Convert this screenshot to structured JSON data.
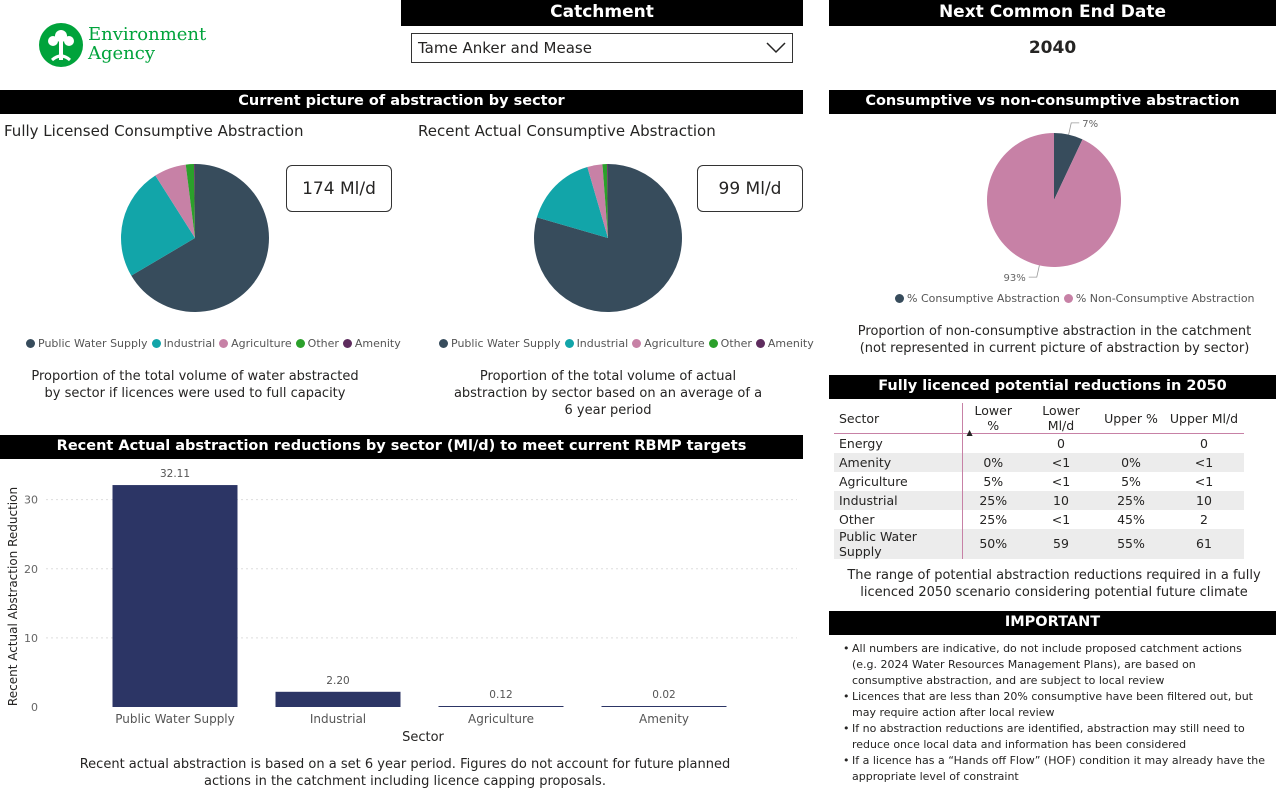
{
  "logo": {
    "line1": "Environment",
    "line2": "Agency"
  },
  "catchment": {
    "header": "Catchment",
    "selected": "Tame Anker and Mease"
  },
  "end_date": {
    "header": "Next Common End Date",
    "value": "2040"
  },
  "sector_section": {
    "header": "Current picture of abstraction by sector"
  },
  "licensed": {
    "title": "Fully Licensed Consumptive Abstraction",
    "card_value": "174 Ml/d",
    "caption": "Proportion of the total volume of water abstracted by sector if licences were used to full capacity"
  },
  "actual": {
    "title": "Recent Actual Consumptive Abstraction",
    "card_value": "99 Ml/d",
    "caption": "Proportion of the total volume of actual abstraction by sector based on an average of a 6 year period"
  },
  "sector_legend": [
    {
      "label": "Public Water Supply",
      "color": "#374C5C"
    },
    {
      "label": "Industrial",
      "color": "#12A5A9"
    },
    {
      "label": "Agriculture",
      "color": "#C781A6"
    },
    {
      "label": "Other",
      "color": "#2BA02B"
    },
    {
      "label": "Amenity",
      "color": "#5E2C5E"
    }
  ],
  "consumptive_section": {
    "header": "Consumptive vs non-consumptive abstraction",
    "legend": [
      {
        "label": "% Consumptive Abstraction",
        "color": "#374C5C"
      },
      {
        "label": "% Non-Consumptive Abstraction",
        "color": "#C781A6"
      }
    ],
    "caption": "Proportion of non-consumptive abstraction in the catchment (not represented in current picture of abstraction by sector)"
  },
  "reductions_section": {
    "header": "Fully licenced potential reductions in 2050",
    "columns": [
      "Sector",
      "Lower %",
      "Lower Ml/d",
      "Upper %",
      "Upper Ml/d"
    ],
    "rows": [
      [
        "Energy",
        "",
        "0",
        "",
        "0"
      ],
      [
        "Amenity",
        "0%",
        "<1",
        "0%",
        "<1"
      ],
      [
        "Agriculture",
        "5%",
        "<1",
        "5%",
        "<1"
      ],
      [
        "Industrial",
        "25%",
        "10",
        "25%",
        "10"
      ],
      [
        "Other",
        "25%",
        "<1",
        "45%",
        "2"
      ],
      [
        "Public Water Supply",
        "50%",
        "59",
        "55%",
        "61"
      ]
    ],
    "caption": "The range of potential abstraction reductions required in a fully licenced 2050 scenario considering potential future climate"
  },
  "important": {
    "header": "IMPORTANT",
    "items": [
      "All numbers are indicative, do not include proposed catchment actions (e.g. 2024 Water Resources Management Plans), are based on consumptive abstraction, and are subject to local review",
      "Licences that are less than 20% consumptive have been filtered out, but may require action after local review",
      "If no abstraction reductions are identified, abstraction may still need to reduce once local data and information has been considered",
      "If a licence has a “Hands off Flow” (HOF) condition it may already have the appropriate level of constraint"
    ]
  },
  "bar_section": {
    "header": "Recent Actual abstraction reductions by sector (Ml/d) to meet current RBMP targets",
    "caption": "Recent actual abstraction is based on a set 6 year period. Figures do not account for future planned actions in the catchment including licence capping proposals."
  },
  "chart_data": [
    {
      "type": "pie",
      "title": "Fully Licensed Consumptive Abstraction",
      "categories": [
        "Public Water Supply",
        "Industrial",
        "Agriculture",
        "Other",
        "Amenity"
      ],
      "values": [
        66.5,
        24.5,
        7.0,
        1.8,
        0.2
      ],
      "colors": [
        "#374C5C",
        "#12A5A9",
        "#C781A6",
        "#2BA02B",
        "#5E2C5E"
      ]
    },
    {
      "type": "pie",
      "title": "Recent Actual Consumptive Abstraction",
      "categories": [
        "Public Water Supply",
        "Industrial",
        "Agriculture",
        "Other",
        "Amenity"
      ],
      "values": [
        79.5,
        16.0,
        3.3,
        1.0,
        0.2
      ],
      "colors": [
        "#374C5C",
        "#12A5A9",
        "#C781A6",
        "#2BA02B",
        "#5E2C5E"
      ]
    },
    {
      "type": "pie",
      "title": "Consumptive vs non-consumptive abstraction",
      "categories": [
        "% Consumptive Abstraction",
        "% Non-Consumptive Abstraction"
      ],
      "values": [
        7,
        93
      ],
      "labels": [
        "7%",
        "93%"
      ],
      "colors": [
        "#374C5C",
        "#C781A6"
      ]
    },
    {
      "type": "bar",
      "title": "Recent Actual abstraction reductions by sector (Ml/d) to meet current RBMP targets",
      "categories": [
        "Public Water Supply",
        "Industrial",
        "Agriculture",
        "Amenity"
      ],
      "values": [
        32.11,
        2.2,
        0.12,
        0.02
      ],
      "value_labels": [
        "32.11",
        "2.20",
        "0.12",
        "0.02"
      ],
      "xlabel": "Sector",
      "ylabel": "Recent Actual Abstraction Reduction",
      "yticks": [
        0,
        10,
        20,
        30
      ],
      "ylim": [
        0,
        34
      ],
      "color": "#2C3565"
    }
  ]
}
